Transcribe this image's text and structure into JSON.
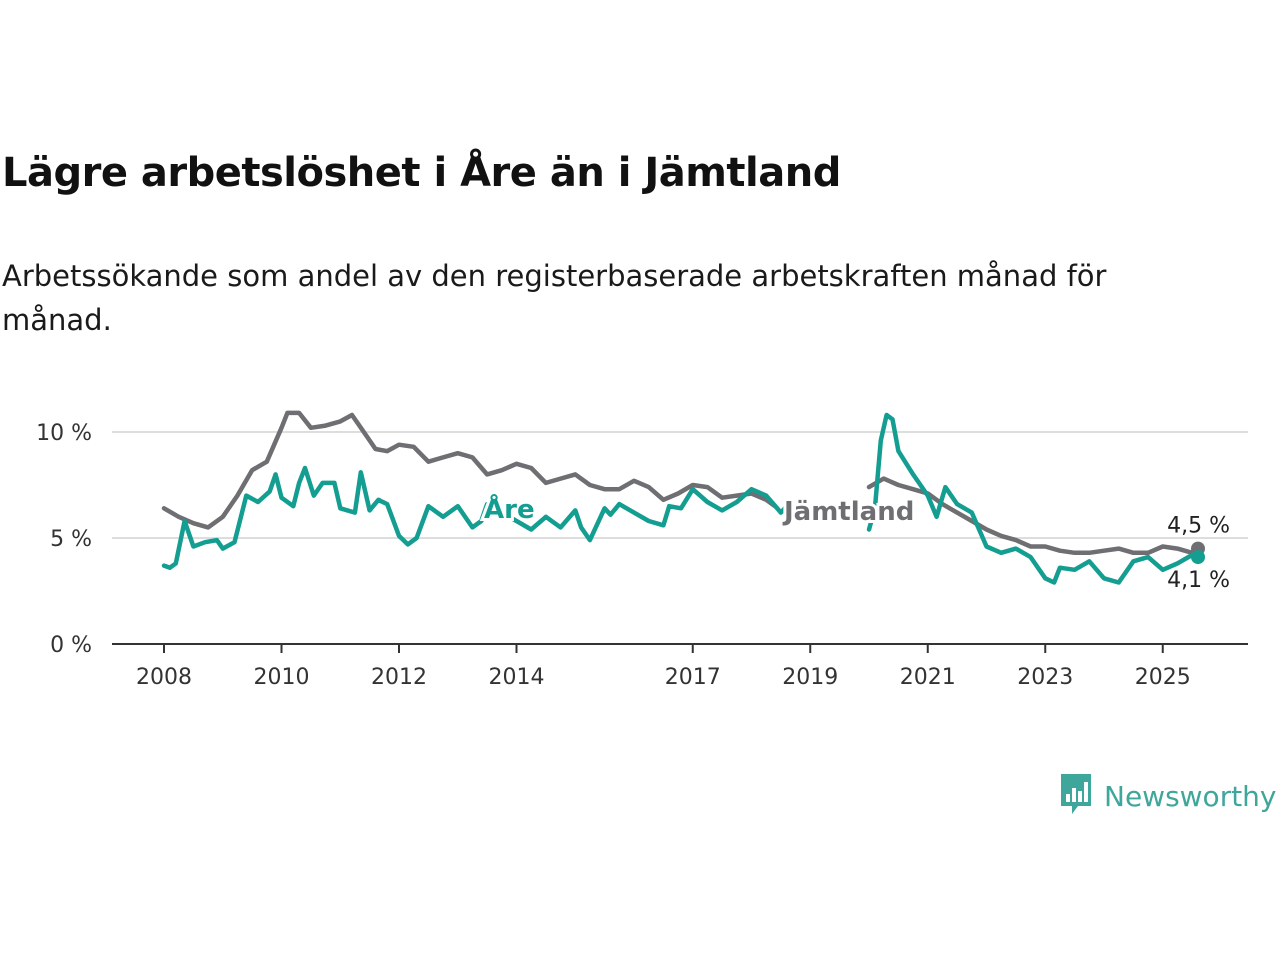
{
  "title": "Lägre arbetslöshet i Åre än i Jämtland",
  "subtitle": "Arbetssökande som andel av den registerbaserade arbetskraften månad för månad.",
  "branding": {
    "name": "Newsworthy",
    "icon": "chart-bubble-icon",
    "color": "#3fa69b"
  },
  "chart_data": {
    "type": "line",
    "title": "Lägre arbetslöshet i Åre än i Jämtland",
    "subtitle": "Arbetssökande som andel av den registerbaserade arbetskraften månad för månad.",
    "xlabel": "",
    "ylabel": "",
    "xlim": [
      2008,
      2025.75
    ],
    "ylim": [
      0,
      10
    ],
    "x_ticks": [
      2008,
      2010,
      2012,
      2014,
      2017,
      2019,
      2021,
      2023,
      2025
    ],
    "x_tick_labels": [
      "2008",
      "2010",
      "2012",
      "2014",
      "2017",
      "2019",
      "2021",
      "2023",
      "2025"
    ],
    "y_ticks": [
      0,
      5,
      10
    ],
    "y_tick_labels": [
      "0 %",
      "5 %",
      "10 %"
    ],
    "grid": "horizontal",
    "legend": "inline labels",
    "series": [
      {
        "name": "Jämtland",
        "color": "#6e6e73",
        "end_label": "4,5 %",
        "end_value": 4.5,
        "points": [
          [
            2008.0,
            6.4
          ],
          [
            2008.25,
            6.0
          ],
          [
            2008.5,
            5.7
          ],
          [
            2008.75,
            5.5
          ],
          [
            2009.0,
            6.0
          ],
          [
            2009.25,
            7.0
          ],
          [
            2009.5,
            8.2
          ],
          [
            2009.75,
            8.6
          ],
          [
            2010.0,
            10.2
          ],
          [
            2010.1,
            10.9
          ],
          [
            2010.3,
            10.9
          ],
          [
            2010.5,
            10.2
          ],
          [
            2010.75,
            10.3
          ],
          [
            2011.0,
            10.5
          ],
          [
            2011.2,
            10.8
          ],
          [
            2011.4,
            10.0
          ],
          [
            2011.6,
            9.2
          ],
          [
            2011.8,
            9.1
          ],
          [
            2012.0,
            9.4
          ],
          [
            2012.25,
            9.3
          ],
          [
            2012.5,
            8.6
          ],
          [
            2012.75,
            8.8
          ],
          [
            2013.0,
            9.0
          ],
          [
            2013.25,
            8.8
          ],
          [
            2013.5,
            8.0
          ],
          [
            2013.75,
            8.2
          ],
          [
            2014.0,
            8.5
          ],
          [
            2014.25,
            8.3
          ],
          [
            2014.5,
            7.6
          ],
          [
            2014.75,
            7.8
          ],
          [
            2015.0,
            8.0
          ],
          [
            2015.25,
            7.5
          ],
          [
            2015.5,
            7.3
          ],
          [
            2015.75,
            7.3
          ],
          [
            2016.0,
            7.7
          ],
          [
            2016.25,
            7.4
          ],
          [
            2016.5,
            6.8
          ],
          [
            2016.75,
            7.1
          ],
          [
            2017.0,
            7.5
          ],
          [
            2017.25,
            7.4
          ],
          [
            2017.5,
            6.9
          ],
          [
            2017.75,
            7.0
          ],
          [
            2018.0,
            7.1
          ],
          [
            2018.25,
            6.8
          ],
          [
            2018.4,
            6.5
          ],
          [
            2020.0,
            7.4
          ],
          [
            2020.25,
            7.8
          ],
          [
            2020.5,
            7.5
          ],
          [
            2020.75,
            7.3
          ],
          [
            2021.0,
            7.1
          ],
          [
            2021.25,
            6.6
          ],
          [
            2021.5,
            6.2
          ],
          [
            2021.75,
            5.8
          ],
          [
            2022.0,
            5.4
          ],
          [
            2022.25,
            5.1
          ],
          [
            2022.5,
            4.9
          ],
          [
            2022.75,
            4.6
          ],
          [
            2023.0,
            4.6
          ],
          [
            2023.25,
            4.4
          ],
          [
            2023.5,
            4.3
          ],
          [
            2023.75,
            4.3
          ],
          [
            2024.0,
            4.4
          ],
          [
            2024.25,
            4.5
          ],
          [
            2024.5,
            4.3
          ],
          [
            2024.75,
            4.3
          ],
          [
            2025.0,
            4.6
          ],
          [
            2025.25,
            4.5
          ],
          [
            2025.5,
            4.3
          ],
          [
            2025.6,
            4.5
          ]
        ]
      },
      {
        "name": "Åre",
        "color": "#139e91",
        "end_label": "4,1 %",
        "end_value": 4.1,
        "points": [
          [
            2008.0,
            3.7
          ],
          [
            2008.1,
            3.6
          ],
          [
            2008.2,
            3.8
          ],
          [
            2008.35,
            5.8
          ],
          [
            2008.5,
            4.6
          ],
          [
            2008.7,
            4.8
          ],
          [
            2008.9,
            4.9
          ],
          [
            2009.0,
            4.5
          ],
          [
            2009.2,
            4.8
          ],
          [
            2009.4,
            7.0
          ],
          [
            2009.6,
            6.7
          ],
          [
            2009.8,
            7.2
          ],
          [
            2009.9,
            8.0
          ],
          [
            2010.0,
            6.9
          ],
          [
            2010.2,
            6.5
          ],
          [
            2010.3,
            7.6
          ],
          [
            2010.4,
            8.3
          ],
          [
            2010.55,
            7.0
          ],
          [
            2010.7,
            7.6
          ],
          [
            2010.9,
            7.6
          ],
          [
            2011.0,
            6.4
          ],
          [
            2011.25,
            6.2
          ],
          [
            2011.35,
            8.1
          ],
          [
            2011.5,
            6.3
          ],
          [
            2011.65,
            6.8
          ],
          [
            2011.8,
            6.6
          ],
          [
            2012.0,
            5.1
          ],
          [
            2012.15,
            4.7
          ],
          [
            2012.3,
            5.0
          ],
          [
            2012.5,
            6.5
          ],
          [
            2012.75,
            6.0
          ],
          [
            2013.0,
            6.5
          ],
          [
            2013.25,
            5.5
          ],
          [
            2013.4,
            5.8
          ],
          [
            2013.5,
            6.6
          ],
          [
            2013.75,
            6.2
          ],
          [
            2014.0,
            5.8
          ],
          [
            2014.25,
            5.4
          ],
          [
            2014.5,
            6.0
          ],
          [
            2014.75,
            5.5
          ],
          [
            2015.0,
            6.3
          ],
          [
            2015.1,
            5.5
          ],
          [
            2015.25,
            4.9
          ],
          [
            2015.5,
            6.4
          ],
          [
            2015.6,
            6.1
          ],
          [
            2015.75,
            6.6
          ],
          [
            2016.0,
            6.2
          ],
          [
            2016.25,
            5.8
          ],
          [
            2016.5,
            5.6
          ],
          [
            2016.6,
            6.5
          ],
          [
            2016.8,
            6.4
          ],
          [
            2017.0,
            7.3
          ],
          [
            2017.25,
            6.7
          ],
          [
            2017.5,
            6.3
          ],
          [
            2017.75,
            6.7
          ],
          [
            2018.0,
            7.3
          ],
          [
            2018.25,
            7.0
          ],
          [
            2018.5,
            6.2
          ],
          [
            2018.6,
            6.5
          ],
          [
            2020.0,
            5.4
          ],
          [
            2020.1,
            6.4
          ],
          [
            2020.2,
            9.6
          ],
          [
            2020.3,
            10.8
          ],
          [
            2020.4,
            10.6
          ],
          [
            2020.5,
            9.1
          ],
          [
            2020.75,
            8.0
          ],
          [
            2021.0,
            7.0
          ],
          [
            2021.15,
            6.0
          ],
          [
            2021.3,
            7.4
          ],
          [
            2021.5,
            6.6
          ],
          [
            2021.75,
            6.2
          ],
          [
            2022.0,
            4.6
          ],
          [
            2022.25,
            4.3
          ],
          [
            2022.5,
            4.5
          ],
          [
            2022.75,
            4.1
          ],
          [
            2023.0,
            3.1
          ],
          [
            2023.15,
            2.9
          ],
          [
            2023.25,
            3.6
          ],
          [
            2023.5,
            3.5
          ],
          [
            2023.75,
            3.9
          ],
          [
            2024.0,
            3.1
          ],
          [
            2024.25,
            2.9
          ],
          [
            2024.5,
            3.9
          ],
          [
            2024.75,
            4.1
          ],
          [
            2025.0,
            3.5
          ],
          [
            2025.25,
            3.8
          ],
          [
            2025.5,
            4.2
          ],
          [
            2025.6,
            4.1
          ]
        ]
      }
    ]
  }
}
